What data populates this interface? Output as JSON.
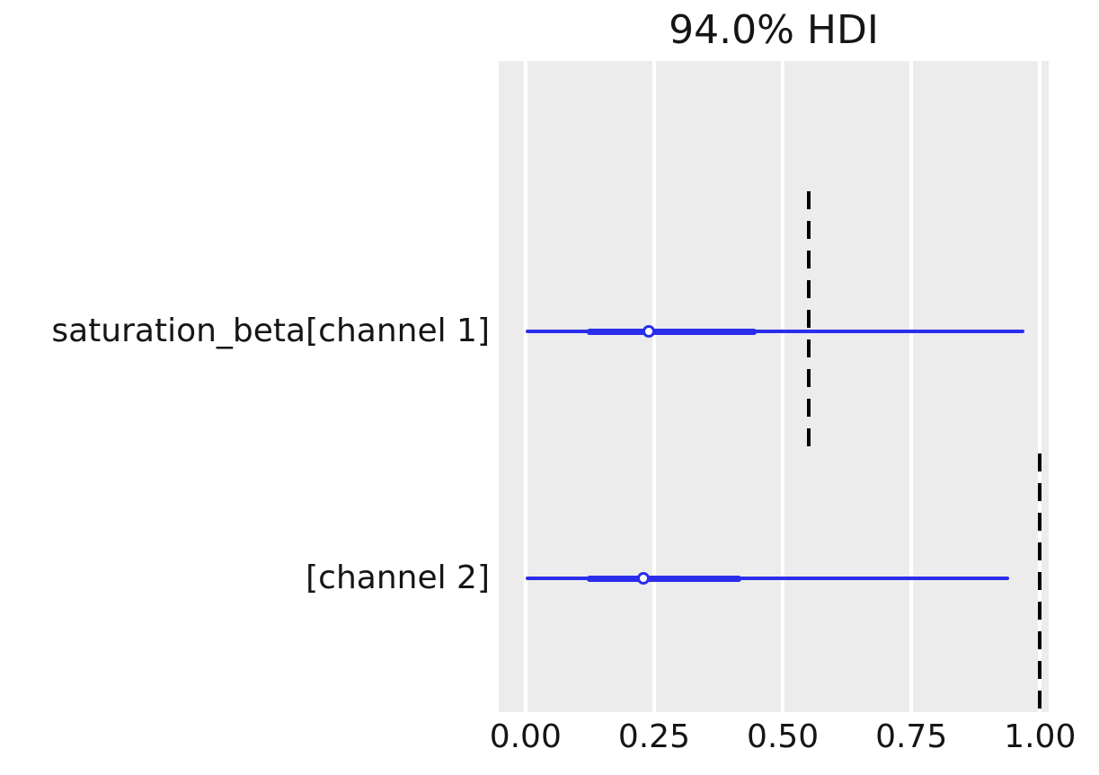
{
  "title": "94.0% HDI",
  "chart_data": {
    "type": "forest",
    "title": "94.0% HDI",
    "xlabel": "",
    "ylabel": "",
    "xlim": [
      -0.052,
      1.017
    ],
    "x_tick_labels": [
      "0.00",
      "0.25",
      "0.50",
      "0.75",
      "1.00"
    ],
    "x_tick_values": [
      0.0,
      0.25,
      0.5,
      0.75,
      1.0
    ],
    "grid": "vertical-white-on-gray",
    "legend": "none",
    "rows": [
      {
        "label": "saturation_beta[channel 1]",
        "hdi_low": 0.0,
        "hdi_high": 0.97,
        "quartile_low": 0.12,
        "quartile_high": 0.45,
        "median": 0.24,
        "reference_value": 0.55
      },
      {
        "label": "[channel 2]",
        "hdi_low": 0.0,
        "hdi_high": 0.94,
        "quartile_low": 0.12,
        "quartile_high": 0.42,
        "median": 0.23,
        "reference_value": 1.0
      }
    ],
    "colors": {
      "interval": "#2a2eec",
      "reference_line": "#000000",
      "plot_background": "#ececec",
      "grid_line": "#ffffff",
      "text": "#151515"
    }
  }
}
